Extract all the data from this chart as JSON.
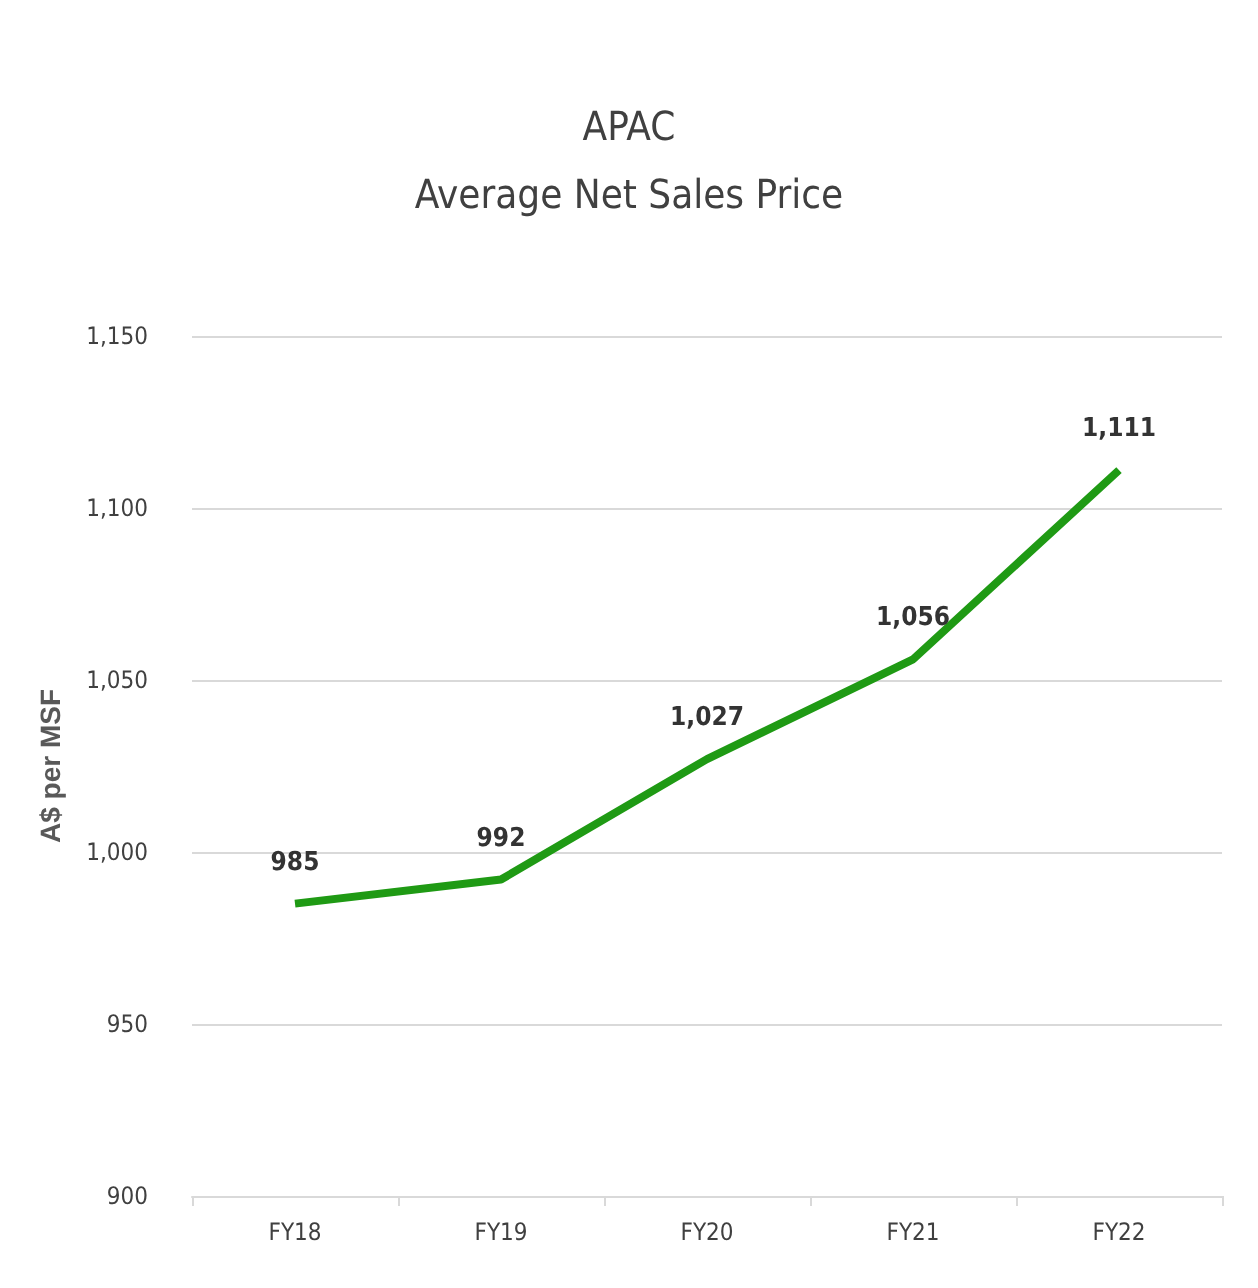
{
  "chart_data": {
    "type": "line",
    "title": "APAC",
    "subtitle": "Average Net Sales Price",
    "ylabel": "A$ per MSF",
    "categories": [
      "FY18",
      "FY19",
      "FY20",
      "FY21",
      "FY22"
    ],
    "series": [
      {
        "color": "#1f9a14",
        "values": [
          985,
          992,
          1027,
          1056,
          1111
        ],
        "value_labels": [
          "985",
          "992",
          "1,027",
          "1,056",
          "1,111"
        ]
      }
    ],
    "ylim": [
      900,
      1150
    ],
    "yticks": [
      {
        "value": 900,
        "label": "900"
      },
      {
        "value": 950,
        "label": "950"
      },
      {
        "value": 1000,
        "label": "1,000"
      },
      {
        "value": 1050,
        "label": "1,050"
      },
      {
        "value": 1100,
        "label": "1,100"
      },
      {
        "value": 1150,
        "label": "1,150"
      }
    ],
    "grid": "y",
    "marker": "none",
    "line_style": "solid"
  }
}
